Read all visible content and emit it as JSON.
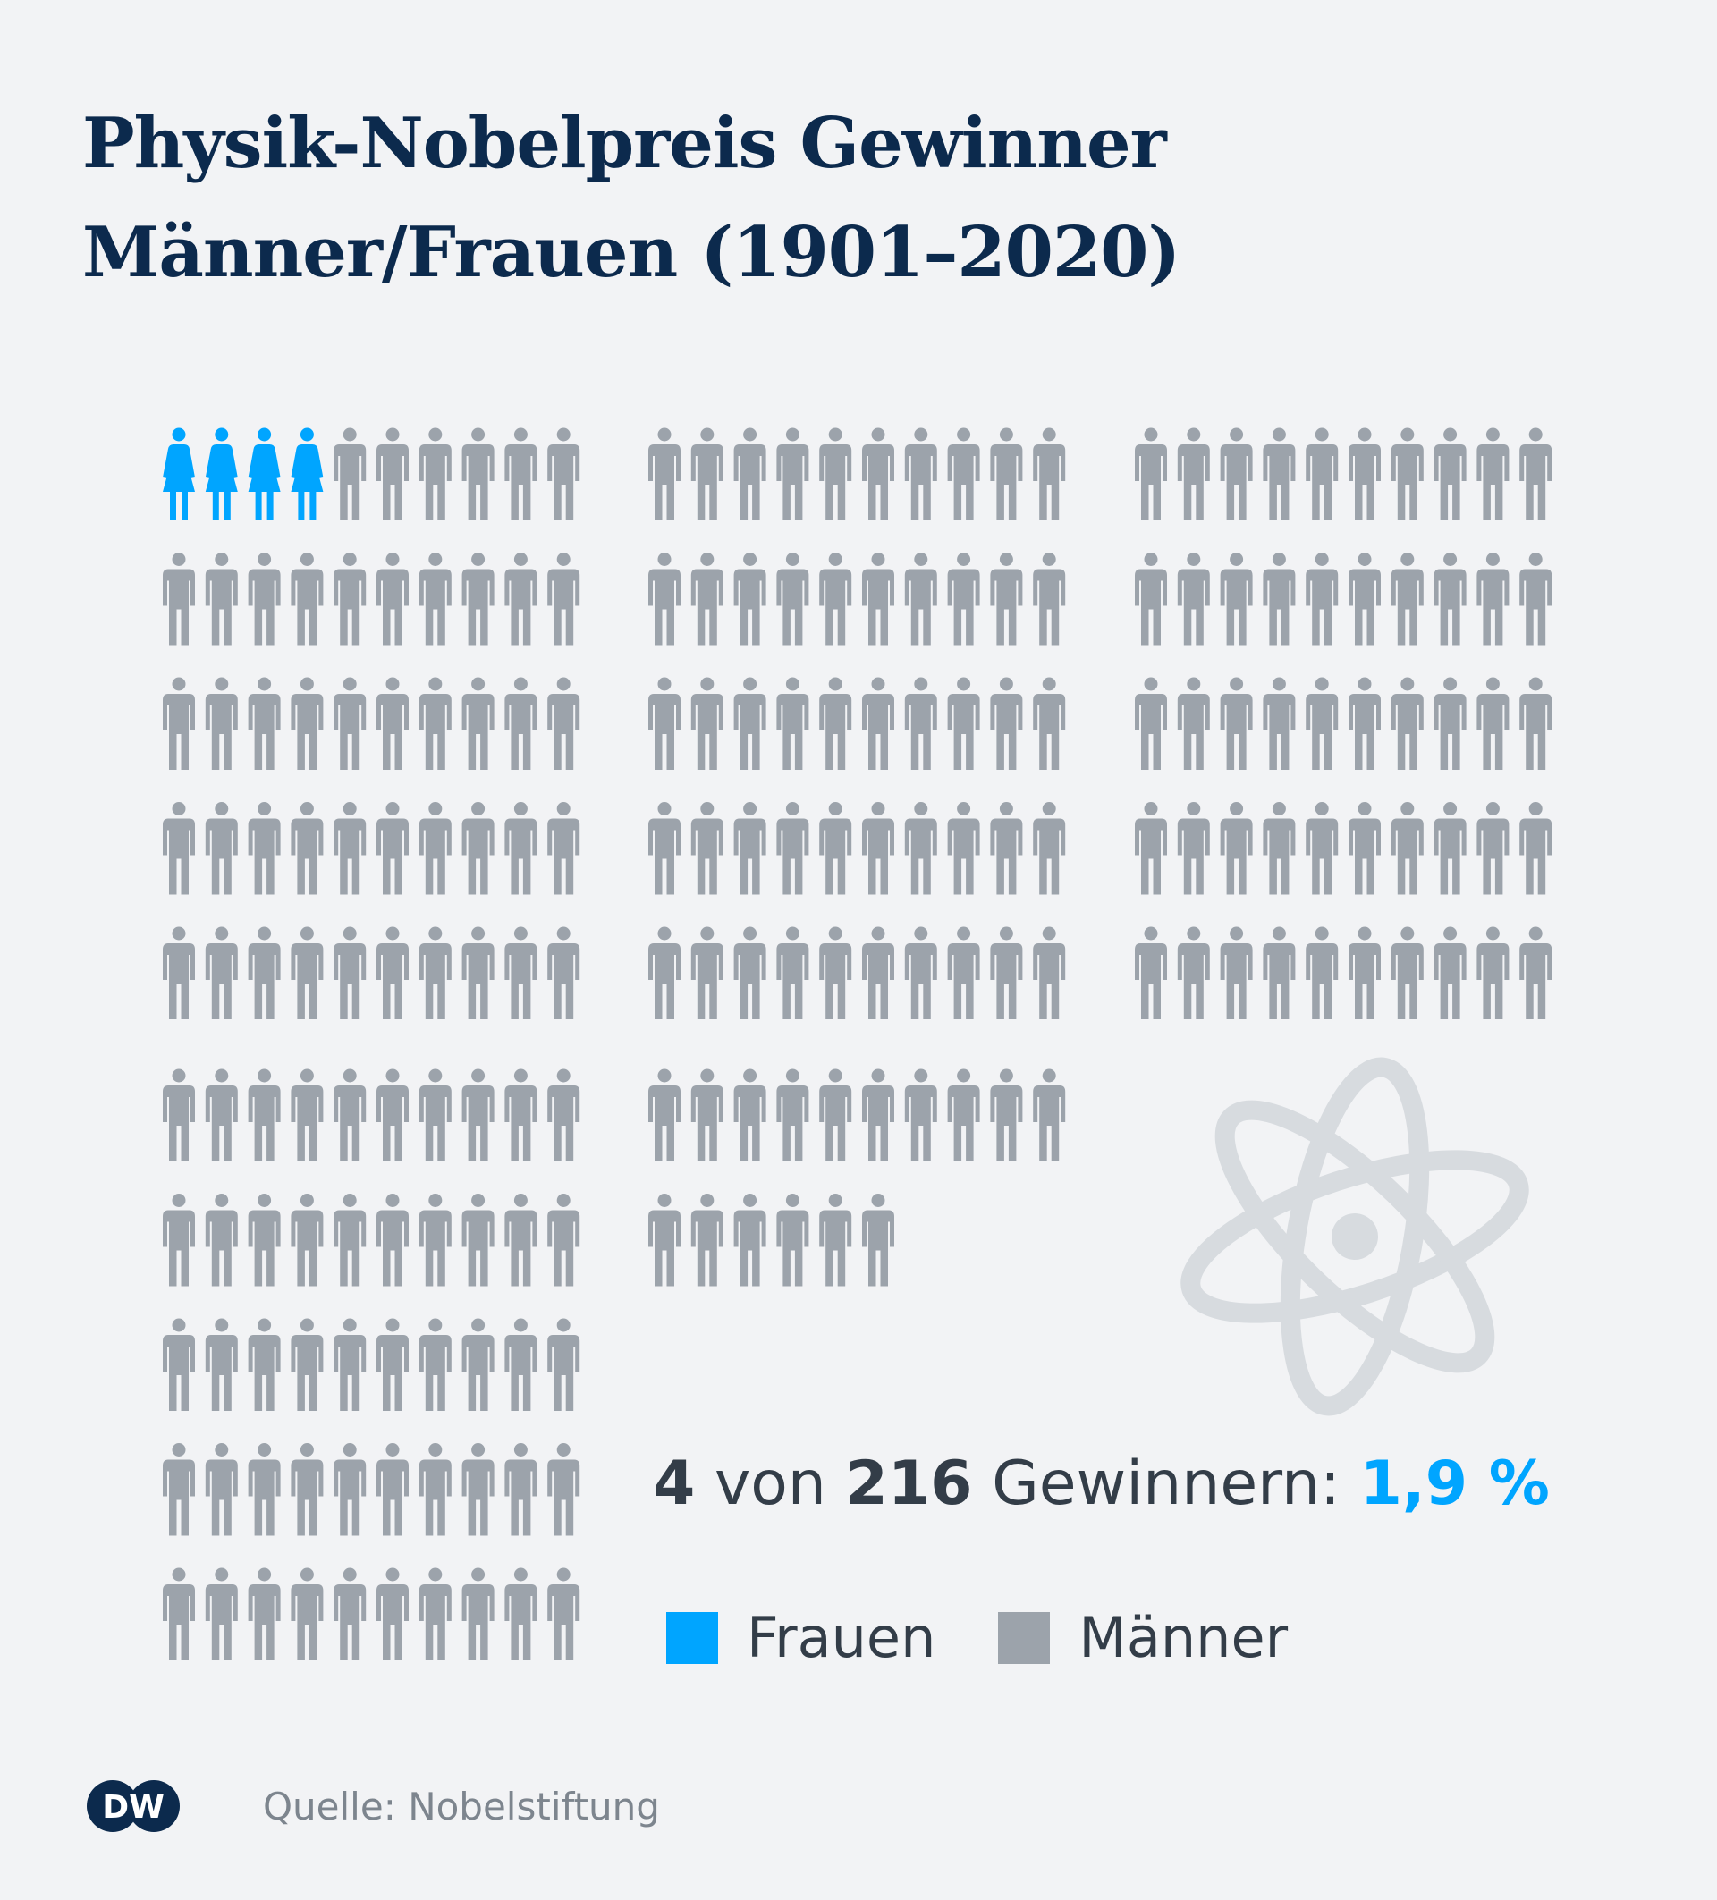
{
  "title": {
    "line1": "Physik-Nobelpreis Gewinner",
    "line2": "Männer/Frauen (1901–2020)"
  },
  "chart_data": {
    "type": "pictogram",
    "categories": [
      "Frauen",
      "Männer"
    ],
    "values": [
      4,
      212
    ],
    "total": 216,
    "colors": {
      "Frauen": "#00a5ff",
      "Männer": "#9ca3ab"
    }
  },
  "summary": {
    "count": "4",
    "of_word": "von",
    "total": "216",
    "label": "Gewinnern:",
    "percent": "1,9 %"
  },
  "legend": {
    "women_label": "Frauen",
    "men_label": "Männer",
    "women_color": "#00a5ff",
    "men_color": "#9ca3ab"
  },
  "footer": {
    "logo_text": "DW",
    "source": "Quelle: Nobelstiftung"
  },
  "icons": {
    "atom": "atom-icon",
    "woman": "woman-icon",
    "man": "man-icon"
  }
}
